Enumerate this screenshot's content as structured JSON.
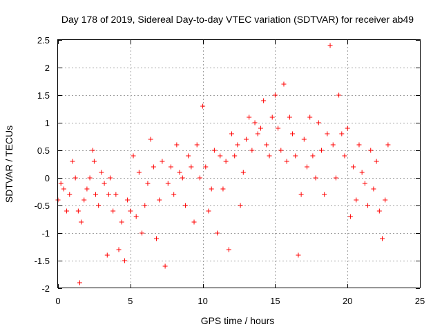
{
  "chart_data": {
    "type": "scatter",
    "title": "Day 178 of 2019, Sidereal Day-to-day VTEC variation (SDTVAR) for receiver ab49",
    "xlabel": "GPS time / hours",
    "ylabel": "SDTVAR / TECUs",
    "xlim": [
      0,
      25
    ],
    "ylim": [
      -2,
      2.5
    ],
    "xticks": [
      0,
      5,
      10,
      15,
      20,
      25
    ],
    "xtick_labels": [
      "0",
      "5",
      "10",
      "15",
      "20",
      "25"
    ],
    "yticks": [
      -2,
      -1.5,
      -1,
      -0.5,
      0,
      0.5,
      1,
      1.5,
      2,
      2.5
    ],
    "ytick_labels": [
      "-2",
      "-1.5",
      "-1",
      "-0.5",
      "0",
      "0.5",
      "1",
      "1.5",
      "2",
      "2.5"
    ],
    "grid": true,
    "marker": "+",
    "color": "#ff0000",
    "series": [
      {
        "name": "SDTVAR",
        "x": [
          0.0,
          0.2,
          0.4,
          0.6,
          0.8,
          1.0,
          1.2,
          1.4,
          1.5,
          1.6,
          1.8,
          2.0,
          2.2,
          2.4,
          2.5,
          2.6,
          2.8,
          3.0,
          3.2,
          3.4,
          3.5,
          3.6,
          3.8,
          4.0,
          4.2,
          4.4,
          4.6,
          4.8,
          5.0,
          5.2,
          5.4,
          5.6,
          5.8,
          6.0,
          6.2,
          6.4,
          6.6,
          6.8,
          7.0,
          7.2,
          7.4,
          7.6,
          7.8,
          8.0,
          8.2,
          8.4,
          8.6,
          8.8,
          9.0,
          9.2,
          9.4,
          9.6,
          9.8,
          10.0,
          10.2,
          10.4,
          10.6,
          10.8,
          11.0,
          11.2,
          11.4,
          11.6,
          11.8,
          12.0,
          12.2,
          12.4,
          12.6,
          12.8,
          13.0,
          13.2,
          13.4,
          13.6,
          13.8,
          14.0,
          14.2,
          14.4,
          14.6,
          14.8,
          15.0,
          15.2,
          15.4,
          15.6,
          15.8,
          16.0,
          16.2,
          16.4,
          16.6,
          16.8,
          17.0,
          17.2,
          17.4,
          17.6,
          17.8,
          18.0,
          18.2,
          18.4,
          18.6,
          18.8,
          19.0,
          19.2,
          19.4,
          19.6,
          19.8,
          20.0,
          20.2,
          20.4,
          20.6,
          20.8,
          21.0,
          21.2,
          21.4,
          21.6,
          21.8,
          22.0,
          22.2,
          22.4,
          22.6,
          22.8
        ],
        "y": [
          -0.4,
          -0.1,
          -0.2,
          -0.6,
          -0.3,
          0.3,
          0.0,
          -0.6,
          -1.9,
          -0.8,
          -0.4,
          -0.2,
          0.0,
          0.5,
          0.3,
          -0.3,
          -0.5,
          0.1,
          -0.1,
          -1.4,
          -0.3,
          0.0,
          -0.6,
          -0.3,
          -1.3,
          -0.8,
          -1.5,
          -0.4,
          -0.6,
          0.4,
          -0.7,
          0.1,
          -1.0,
          -0.5,
          -0.1,
          0.7,
          0.2,
          -1.1,
          -0.4,
          0.3,
          -1.6,
          -0.1,
          0.2,
          -0.3,
          0.6,
          0.1,
          0.0,
          -0.5,
          0.4,
          0.2,
          -0.8,
          0.6,
          0.0,
          1.3,
          0.2,
          -0.6,
          -0.2,
          0.5,
          -1.0,
          0.4,
          -0.2,
          0.3,
          -1.3,
          0.8,
          0.4,
          0.6,
          -0.5,
          0.1,
          0.7,
          1.1,
          0.5,
          1.0,
          0.8,
          0.9,
          1.4,
          0.6,
          0.4,
          1.1,
          1.5,
          0.9,
          0.5,
          1.7,
          0.3,
          1.1,
          0.8,
          0.4,
          -1.4,
          -0.3,
          0.7,
          0.2,
          1.1,
          0.4,
          0.0,
          1.0,
          0.5,
          -0.3,
          0.8,
          2.4,
          0.6,
          0.0,
          1.5,
          0.8,
          0.4,
          0.9,
          -0.7,
          0.2,
          -0.4,
          0.6,
          0.1,
          -0.1,
          -0.5,
          0.5,
          -0.2,
          0.3,
          -0.6,
          -1.1,
          -0.4,
          0.6
        ]
      }
    ]
  }
}
